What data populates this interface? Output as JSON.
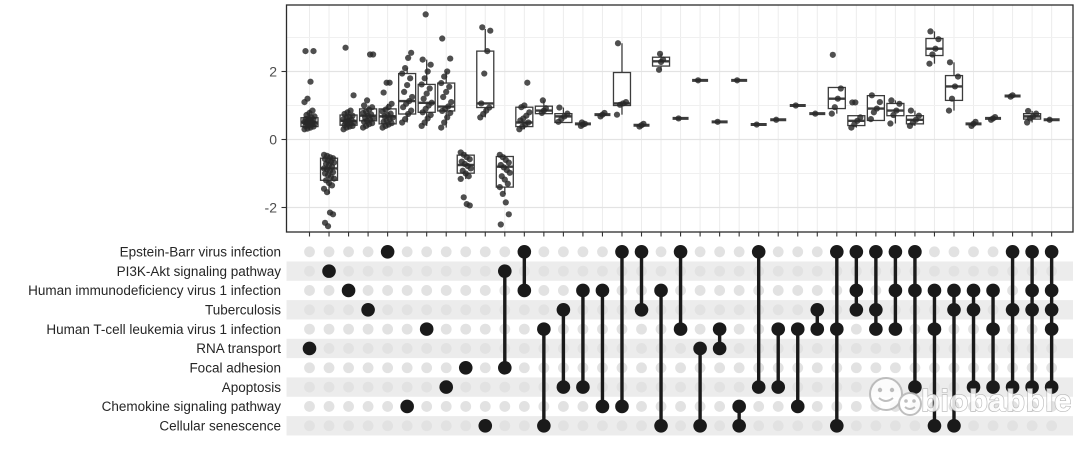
{
  "watermark": {
    "text": "biobabble"
  },
  "colors": {
    "black_dot": "#1a1a1a",
    "gray_dot": "#e2e2e2",
    "stripe": "#ececec",
    "grid_major": "#e3e3e3",
    "grid_minor": "#f0f0f0",
    "grid_vertical": "#ececec",
    "panel_border": "#2b2b2b",
    "box_stroke": "#3c3c3c",
    "point_fill": "#282828",
    "axis_text": "#4d4d4d",
    "label_text": "#262626",
    "watermark_stroke": "#b5b5b5"
  },
  "chart_data": {
    "type": "upset-boxplot",
    "title": "",
    "xlabel": "",
    "ylabel": "",
    "ylim": [
      -2.74,
      3.94
    ],
    "grid": true,
    "y_ticks": [
      {
        "label": "2",
        "value": 2
      },
      {
        "label": "0",
        "value": 0
      },
      {
        "label": "-2",
        "value": -2
      }
    ],
    "y_minor_gridlines": [
      3,
      1,
      -1
    ],
    "pathways": [
      "Epstein-Barr virus infection",
      "PI3K-Akt signaling pathway",
      "Human immunodeficiency virus 1 infection",
      "Tuberculosis",
      "Human T-cell leukemia virus 1 infection",
      "RNA transport",
      "Focal adhesion",
      "Apoptosis",
      "Chemokine signaling pathway",
      "Cellular senescence"
    ],
    "columns": [
      {
        "members": [
          5
        ],
        "box": {
          "q1": 0.38,
          "med": 0.5,
          "q3": 0.64,
          "lo": 0.3,
          "hi": 0.88
        },
        "points": [
          0.3,
          0.32,
          0.35,
          0.38,
          0.4,
          0.42,
          0.44,
          0.46,
          0.48,
          0.5,
          0.5,
          0.52,
          0.54,
          0.56,
          0.58,
          0.6,
          0.62,
          0.65,
          0.68,
          0.72,
          0.78,
          0.85,
          1.1,
          1.2,
          1.7,
          2.6,
          2.6
        ]
      },
      {
        "members": [
          1
        ],
        "box": {
          "q1": -1.2,
          "med": -0.85,
          "q3": -0.55,
          "lo": -1.6,
          "hi": -0.45
        },
        "points": [
          -0.45,
          -0.48,
          -0.52,
          -0.55,
          -0.58,
          -0.62,
          -0.65,
          -0.68,
          -0.72,
          -0.75,
          -0.8,
          -0.85,
          -0.88,
          -0.92,
          -0.96,
          -1.0,
          -1.05,
          -1.1,
          -1.15,
          -1.2,
          -1.28,
          -1.35,
          -1.45,
          -1.55,
          -2.15,
          -2.2,
          -2.45,
          -2.55
        ]
      },
      {
        "members": [
          2
        ],
        "box": {
          "q1": 0.42,
          "med": 0.55,
          "q3": 0.72,
          "lo": 0.3,
          "hi": 0.85
        },
        "points": [
          0.3,
          0.35,
          0.38,
          0.4,
          0.43,
          0.45,
          0.48,
          0.5,
          0.52,
          0.55,
          0.58,
          0.6,
          0.63,
          0.66,
          0.7,
          0.75,
          0.8,
          0.85,
          1.3,
          2.7
        ]
      },
      {
        "members": [
          3
        ],
        "box": {
          "q1": 0.55,
          "med": 0.7,
          "q3": 0.9,
          "lo": 0.35,
          "hi": 1.0
        },
        "points": [
          0.35,
          0.4,
          0.45,
          0.48,
          0.52,
          0.55,
          0.58,
          0.62,
          0.65,
          0.7,
          0.74,
          0.78,
          0.82,
          0.88,
          0.95,
          1.0,
          1.15,
          2.5,
          2.5
        ]
      },
      {
        "members": [
          0
        ],
        "box": {
          "q1": 0.46,
          "med": 0.68,
          "q3": 0.9,
          "lo": 0.35,
          "hi": 1.05
        },
        "points": [
          0.35,
          0.4,
          0.44,
          0.48,
          0.52,
          0.56,
          0.6,
          0.64,
          0.68,
          0.72,
          0.76,
          0.82,
          0.88,
          0.95,
          1.05,
          1.38,
          1.67,
          1.67
        ]
      },
      {
        "members": [
          8
        ],
        "box": {
          "q1": 0.75,
          "med": 1.13,
          "q3": 1.94,
          "lo": 0.5,
          "hi": 2.1
        },
        "points": [
          0.5,
          0.6,
          0.75,
          0.85,
          0.95,
          1.05,
          1.13,
          1.25,
          1.4,
          1.6,
          1.8,
          1.94,
          2.1,
          2.4,
          2.55
        ]
      },
      {
        "members": [
          4
        ],
        "box": {
          "q1": 0.8,
          "med": 1.08,
          "q3": 1.62,
          "lo": 0.4,
          "hi": 2.35
        },
        "points": [
          0.4,
          0.5,
          0.62,
          0.72,
          0.8,
          0.9,
          1.0,
          1.08,
          1.2,
          1.35,
          1.5,
          1.62,
          1.8,
          2.0,
          2.2,
          2.35,
          3.68
        ]
      },
      {
        "members": [
          7
        ],
        "box": {
          "q1": 0.84,
          "med": 0.97,
          "q3": 1.66,
          "lo": 0.35,
          "hi": 2.0
        },
        "points": [
          0.35,
          0.5,
          0.65,
          0.78,
          0.84,
          0.9,
          0.97,
          1.1,
          1.25,
          1.4,
          1.55,
          1.66,
          1.85,
          2.0,
          2.38,
          2.97
        ]
      },
      {
        "members": [
          6
        ],
        "box": {
          "q1": -0.99,
          "med": -0.75,
          "q3": -0.46,
          "lo": -1.16,
          "hi": -0.38
        },
        "points": [
          -0.38,
          -0.45,
          -0.52,
          -0.58,
          -0.65,
          -0.72,
          -0.78,
          -0.85,
          -0.92,
          -1.0,
          -1.08,
          -1.16,
          -1.7,
          -1.9,
          -1.94
        ]
      },
      {
        "members": [
          9
        ],
        "box": {
          "q1": 0.94,
          "med": 1.06,
          "q3": 2.6,
          "lo": 0.65,
          "hi": 3.25
        },
        "points": [
          0.65,
          0.75,
          0.85,
          0.94,
          1.06,
          1.94,
          2.6,
          3.2,
          3.3
        ]
      },
      {
        "members": [
          1,
          6
        ],
        "box": {
          "q1": -1.4,
          "med": -0.8,
          "q3": -0.5,
          "lo": -1.6,
          "hi": -0.45
        },
        "points": [
          -0.45,
          -0.52,
          -0.6,
          -0.68,
          -0.75,
          -0.82,
          -0.9,
          -0.98,
          -1.08,
          -1.18,
          -1.3,
          -1.4,
          -1.6,
          -1.85,
          -2.2,
          -2.5
        ]
      },
      {
        "members": [
          0,
          2
        ],
        "box": {
          "q1": 0.38,
          "med": 0.5,
          "q3": 0.95,
          "lo": 0.3,
          "hi": 1.0
        },
        "points": [
          0.3,
          0.38,
          0.44,
          0.5,
          0.56,
          0.62,
          0.7,
          0.8,
          0.95,
          1.0,
          1.67
        ]
      },
      {
        "members": [
          4,
          9
        ],
        "box": {
          "q1": 0.76,
          "med": 0.85,
          "q3": 0.98,
          "lo": 0.76,
          "hi": 1.15
        },
        "points": [
          0.78,
          0.85,
          0.92,
          1.15
        ]
      },
      {
        "members": [
          3,
          7
        ],
        "box": {
          "q1": 0.5,
          "med": 0.68,
          "q3": 0.76,
          "lo": 0.5,
          "hi": 0.94
        },
        "points": [
          0.52,
          0.6,
          0.68,
          0.76,
          0.94
        ]
      },
      {
        "members": [
          2,
          7
        ],
        "box": {
          "q1": 0.46,
          "med": 0.46,
          "q3": 0.46,
          "lo": 0.4,
          "hi": 0.5
        },
        "points": [
          0.4,
          0.44,
          0.46,
          0.5
        ]
      },
      {
        "members": [
          2,
          8
        ],
        "box": {
          "q1": 0.73,
          "med": 0.73,
          "q3": 0.73,
          "lo": 0.68,
          "hi": 0.78
        },
        "points": [
          0.68,
          0.73,
          0.78
        ]
      },
      {
        "members": [
          0,
          8
        ],
        "box": {
          "q1": 1.0,
          "med": 1.06,
          "q3": 1.97,
          "lo": 0.73,
          "hi": 2.83
        },
        "points": [
          0.73,
          1.02,
          1.06,
          1.1,
          2.83
        ]
      },
      {
        "members": [
          0,
          3
        ],
        "box": {
          "q1": 0.42,
          "med": 0.42,
          "q3": 0.42,
          "lo": 0.38,
          "hi": 0.46
        },
        "points": [
          0.38,
          0.42,
          0.46
        ]
      },
      {
        "members": [
          2,
          9
        ],
        "box": {
          "q1": 2.16,
          "med": 2.3,
          "q3": 2.42,
          "lo": 2.05,
          "hi": 2.52
        },
        "points": [
          2.05,
          2.28,
          2.35,
          2.52
        ]
      },
      {
        "members": [
          0,
          4
        ],
        "box": {
          "q1": 0.62,
          "med": 0.62,
          "q3": 0.62,
          "lo": 0.62,
          "hi": 0.62
        },
        "points": [
          0.62
        ]
      },
      {
        "members": [
          5,
          9
        ],
        "box": {
          "q1": 1.74,
          "med": 1.74,
          "q3": 1.74,
          "lo": 1.74,
          "hi": 1.74
        },
        "points": [
          1.74
        ]
      },
      {
        "members": [
          4,
          5
        ],
        "box": {
          "q1": 0.52,
          "med": 0.52,
          "q3": 0.52,
          "lo": 0.52,
          "hi": 0.52
        },
        "points": [
          0.52
        ]
      },
      {
        "members": [
          8,
          9
        ],
        "box": {
          "q1": 1.74,
          "med": 1.74,
          "q3": 1.74,
          "lo": 1.74,
          "hi": 1.74
        },
        "points": [
          1.74
        ]
      },
      {
        "members": [
          0,
          7
        ],
        "box": {
          "q1": 0.44,
          "med": 0.44,
          "q3": 0.44,
          "lo": 0.44,
          "hi": 0.44
        },
        "points": [
          0.44
        ]
      },
      {
        "members": [
          4,
          7
        ],
        "box": {
          "q1": 0.58,
          "med": 0.58,
          "q3": 0.58,
          "lo": 0.58,
          "hi": 0.58
        },
        "points": [
          0.58
        ]
      },
      {
        "members": [
          4,
          8
        ],
        "box": {
          "q1": 1.0,
          "med": 1.0,
          "q3": 1.0,
          "lo": 1.0,
          "hi": 1.0
        },
        "points": [
          1.0
        ]
      },
      {
        "members": [
          3,
          4
        ],
        "box": {
          "q1": 0.76,
          "med": 0.76,
          "q3": 0.76,
          "lo": 0.76,
          "hi": 0.76
        },
        "points": [
          0.76
        ]
      },
      {
        "members": [
          0,
          4,
          9
        ],
        "box": {
          "q1": 0.91,
          "med": 1.2,
          "q3": 1.53,
          "lo": 0.76,
          "hi": 1.53
        },
        "points": [
          0.76,
          0.95,
          1.2,
          1.5,
          2.49
        ]
      },
      {
        "members": [
          0,
          2,
          3
        ],
        "box": {
          "q1": 0.41,
          "med": 0.55,
          "q3": 0.7,
          "lo": 0.35,
          "hi": 0.7
        },
        "points": [
          0.35,
          0.45,
          0.55,
          0.65,
          1.09,
          1.09
        ]
      },
      {
        "members": [
          0,
          3,
          4
        ],
        "box": {
          "q1": 0.56,
          "med": 0.91,
          "q3": 1.29,
          "lo": 0.56,
          "hi": 1.3
        },
        "points": [
          0.6,
          0.8,
          0.91,
          1.1,
          1.3
        ]
      },
      {
        "members": [
          0,
          2,
          4
        ],
        "box": {
          "q1": 0.7,
          "med": 0.85,
          "q3": 1.06,
          "lo": 0.47,
          "hi": 1.15
        },
        "points": [
          0.47,
          0.72,
          0.85,
          1.05,
          1.15
        ]
      },
      {
        "members": [
          0,
          2,
          7
        ],
        "box": {
          "q1": 0.46,
          "med": 0.58,
          "q3": 0.7,
          "lo": 0.4,
          "hi": 0.85
        },
        "points": [
          0.4,
          0.5,
          0.58,
          0.7,
          0.85
        ]
      },
      {
        "members": [
          2,
          4,
          9
        ],
        "box": {
          "q1": 2.47,
          "med": 2.67,
          "q3": 2.97,
          "lo": 2.23,
          "hi": 3.18
        },
        "points": [
          2.23,
          2.5,
          2.67,
          2.95,
          3.18
        ]
      },
      {
        "members": [
          2,
          3,
          9
        ],
        "box": {
          "q1": 1.15,
          "med": 1.56,
          "q3": 1.88,
          "lo": 0.85,
          "hi": 2.27
        },
        "points": [
          0.85,
          1.2,
          1.56,
          1.85,
          2.27
        ]
      },
      {
        "members": [
          2,
          3,
          7
        ],
        "box": {
          "q1": 0.46,
          "med": 0.46,
          "q3": 0.46,
          "lo": 0.4,
          "hi": 0.52
        },
        "points": [
          0.4,
          0.46,
          0.52
        ]
      },
      {
        "members": [
          2,
          4,
          7
        ],
        "box": {
          "q1": 0.62,
          "med": 0.62,
          "q3": 0.62,
          "lo": 0.58,
          "hi": 0.66
        },
        "points": [
          0.58,
          0.62,
          0.66
        ]
      },
      {
        "members": [
          0,
          3,
          7
        ],
        "box": {
          "q1": 1.28,
          "med": 1.28,
          "q3": 1.28,
          "lo": 1.26,
          "hi": 1.3
        },
        "points": [
          1.26,
          1.3
        ]
      },
      {
        "members": [
          0,
          2,
          3,
          7
        ],
        "box": {
          "q1": 0.6,
          "med": 0.68,
          "q3": 0.76,
          "lo": 0.5,
          "hi": 0.84
        },
        "points": [
          0.5,
          0.62,
          0.68,
          0.76,
          0.84
        ]
      },
      {
        "members": [
          0,
          2,
          3,
          4,
          7
        ],
        "box": {
          "q1": 0.58,
          "med": 0.58,
          "q3": 0.58,
          "lo": 0.58,
          "hi": 0.58
        },
        "points": [
          0.58
        ]
      }
    ]
  }
}
